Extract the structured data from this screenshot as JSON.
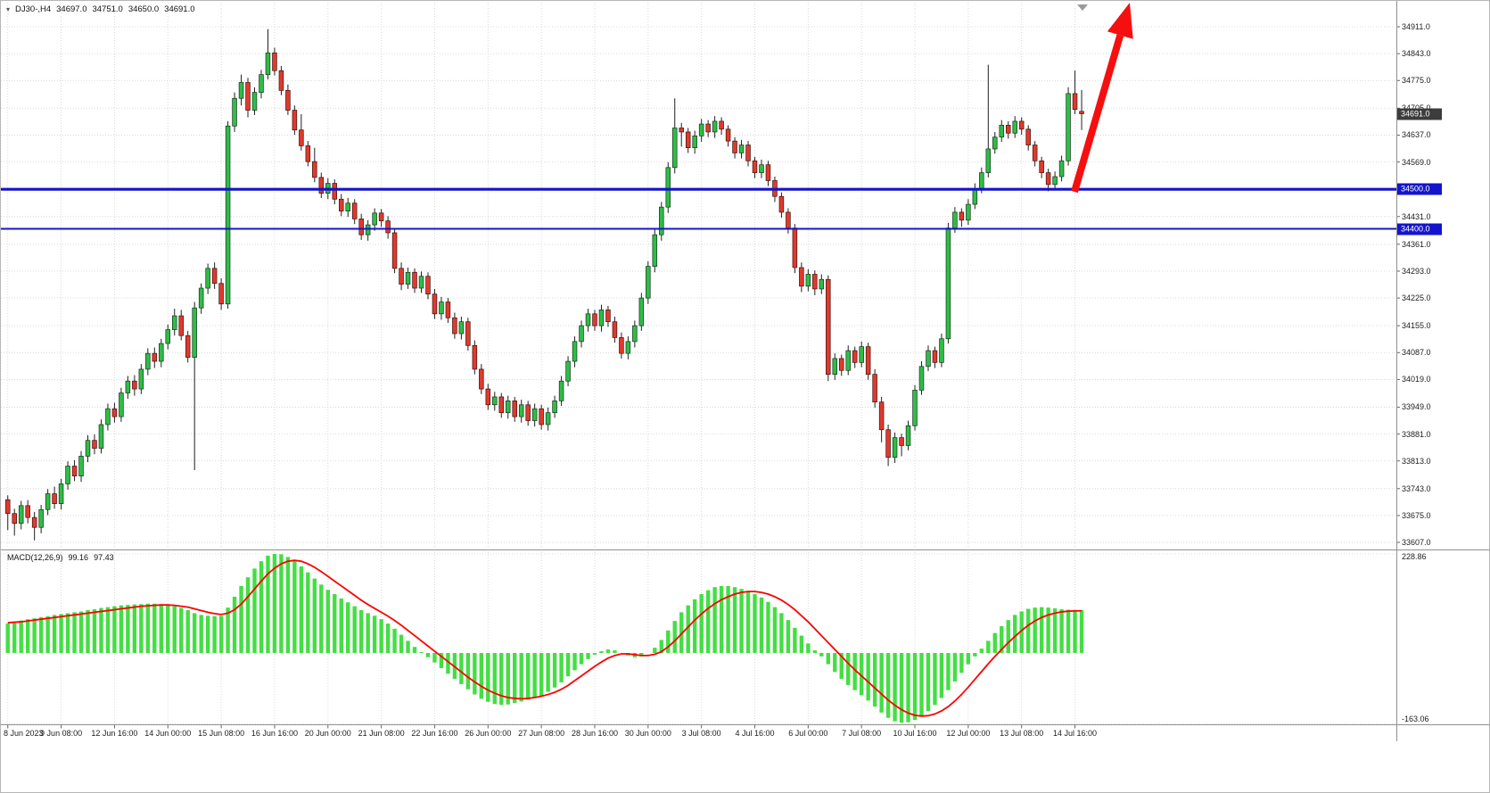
{
  "header": {
    "symbol": "DJ30-,H4",
    "open": "34697.0",
    "high": "34751.0",
    "low": "34650.0",
    "close": "34691.0"
  },
  "price_axis": {
    "ticks": [
      "34911.0",
      "34843.0",
      "34775.0",
      "34705.0",
      "34637.0",
      "34569.0",
      "34431.0",
      "34361.0",
      "34293.0",
      "34225.0",
      "34155.0",
      "34087.0",
      "34019.0",
      "33949.0",
      "33881.0",
      "33813.0",
      "33743.0",
      "33675.0",
      "33607.0"
    ],
    "current_price_label": "34691.0",
    "line_labels": [
      "34500.0",
      "34400.0"
    ]
  },
  "macd_panel": {
    "name": "MACD(12,26,9)",
    "main_value": "99.16",
    "signal_value": "97.43",
    "axis_ticks": [
      "228.86",
      "-163.06"
    ]
  },
  "time_axis": {
    "labels": [
      "8 Jun 2023",
      "9 Jun 08:00",
      "12 Jun 16:00",
      "14 Jun 00:00",
      "15 Jun 08:00",
      "16 Jun 16:00",
      "20 Jun 00:00",
      "21 Jun 08:00",
      "22 Jun 16:00",
      "26 Jun 00:00",
      "27 Jun 08:00",
      "28 Jun 16:00",
      "30 Jun 00:00",
      "3 Jul 08:00",
      "4 Jul 16:00",
      "6 Jul 00:00",
      "7 Jul 08:00",
      "10 Jul 16:00",
      "12 Jul 00:00",
      "13 Jul 08:00",
      "14 Jul 16:00"
    ]
  },
  "colors": {
    "bull": "#2fbd47",
    "bear": "#e2392c",
    "macd_histogram": "#43de43",
    "macd_signal": "#fe0000",
    "horizontal_line": "#1414cc",
    "arrow": "#f50f0f",
    "grid": "#d9d9d9",
    "current_price_badge": "#3c3c3c"
  },
  "chart_data": {
    "type": "candlestick",
    "symbol": "DJ30-",
    "timeframe": "H4",
    "current_bar": {
      "open": 34697.0,
      "high": 34751.0,
      "low": 34650.0,
      "close": 34691.0
    },
    "ylim": [
      33607,
      34911
    ],
    "grid": true,
    "bars_per_label": 8,
    "x_labels": [
      "8 Jun 2023",
      "9 Jun 08:00",
      "12 Jun 16:00",
      "14 Jun 00:00",
      "15 Jun 08:00",
      "16 Jun 16:00",
      "20 Jun 00:00",
      "21 Jun 08:00",
      "22 Jun 16:00",
      "26 Jun 00:00",
      "27 Jun 08:00",
      "28 Jun 16:00",
      "30 Jun 00:00",
      "3 Jul 08:00",
      "4 Jul 16:00",
      "6 Jul 00:00",
      "7 Jul 08:00",
      "10 Jul 16:00",
      "12 Jul 00:00",
      "13 Jul 08:00",
      "14 Jul 16:00"
    ],
    "hlines": [
      34500.0,
      34400.0
    ],
    "annotations": [
      {
        "type": "arrow-up-right",
        "color": "#f50f0f",
        "anchor_price": 34500.0
      }
    ],
    "candles": [
      [
        33715,
        33726,
        33638,
        33680
      ],
      [
        33680,
        33692,
        33624,
        33655
      ],
      [
        33655,
        33712,
        33640,
        33700
      ],
      [
        33700,
        33714,
        33655,
        33670
      ],
      [
        33670,
        33684,
        33612,
        33645
      ],
      [
        33645,
        33702,
        33630,
        33690
      ],
      [
        33690,
        33742,
        33676,
        33730
      ],
      [
        33730,
        33748,
        33692,
        33705
      ],
      [
        33705,
        33768,
        33690,
        33755
      ],
      [
        33755,
        33812,
        33740,
        33800
      ],
      [
        33800,
        33815,
        33762,
        33775
      ],
      [
        33775,
        33838,
        33760,
        33825
      ],
      [
        33825,
        33878,
        33810,
        33865
      ],
      [
        33865,
        33880,
        33830,
        33845
      ],
      [
        33845,
        33918,
        33832,
        33905
      ],
      [
        33905,
        33958,
        33890,
        33945
      ],
      [
        33945,
        33960,
        33910,
        33925
      ],
      [
        33925,
        33998,
        33912,
        33985
      ],
      [
        33985,
        34028,
        33970,
        34015
      ],
      [
        34015,
        34030,
        33978,
        33995
      ],
      [
        33995,
        34058,
        33982,
        34045
      ],
      [
        34045,
        34098,
        34030,
        34085
      ],
      [
        34085,
        34100,
        34048,
        34065
      ],
      [
        34065,
        34122,
        34050,
        34110
      ],
      [
        34110,
        34158,
        34095,
        34145
      ],
      [
        34145,
        34198,
        34130,
        34180
      ],
      [
        34180,
        34195,
        34118,
        34130
      ],
      [
        34130,
        34142,
        34062,
        34075
      ],
      [
        34075,
        34215,
        33790,
        34200
      ],
      [
        34200,
        34262,
        34185,
        34250
      ],
      [
        34250,
        34312,
        34235,
        34300
      ],
      [
        34300,
        34315,
        34248,
        34262
      ],
      [
        34262,
        34275,
        34195,
        34210
      ],
      [
        34210,
        34672,
        34198,
        34660
      ],
      [
        34660,
        34745,
        34645,
        34730
      ],
      [
        34730,
        34790,
        34712,
        34770
      ],
      [
        34770,
        34782,
        34682,
        34700
      ],
      [
        34700,
        34758,
        34688,
        34745
      ],
      [
        34745,
        34802,
        34730,
        34790
      ],
      [
        34790,
        34905,
        34778,
        34845
      ],
      [
        34845,
        34858,
        34788,
        34800
      ],
      [
        34800,
        34812,
        34738,
        34750
      ],
      [
        34750,
        34765,
        34688,
        34700
      ],
      [
        34700,
        34712,
        34638,
        34650
      ],
      [
        34650,
        34690,
        34598,
        34610
      ],
      [
        34610,
        34622,
        34558,
        34570
      ],
      [
        34570,
        34605,
        34518,
        34530
      ],
      [
        34530,
        34542,
        34478,
        34490
      ],
      [
        34490,
        34528,
        34475,
        34515
      ],
      [
        34515,
        34525,
        34462,
        34475
      ],
      [
        34475,
        34488,
        34432,
        34445
      ],
      [
        34445,
        34478,
        34430,
        34465
      ],
      [
        34465,
        34475,
        34412,
        34425
      ],
      [
        34425,
        34438,
        34372,
        34385
      ],
      [
        34385,
        34422,
        34370,
        34410
      ],
      [
        34410,
        34452,
        34395,
        34440
      ],
      [
        34440,
        34450,
        34405,
        34420
      ],
      [
        34420,
        34432,
        34375,
        34390
      ],
      [
        34390,
        34400,
        34288,
        34300
      ],
      [
        34300,
        34315,
        34245,
        34260
      ],
      [
        34260,
        34302,
        34248,
        34290
      ],
      [
        34290,
        34300,
        34238,
        34250
      ],
      [
        34250,
        34292,
        34238,
        34280
      ],
      [
        34280,
        34290,
        34222,
        34235
      ],
      [
        34235,
        34248,
        34172,
        34185
      ],
      [
        34185,
        34228,
        34170,
        34215
      ],
      [
        34215,
        34225,
        34162,
        34175
      ],
      [
        34175,
        34188,
        34122,
        34135
      ],
      [
        34135,
        34178,
        34120,
        34165
      ],
      [
        34165,
        34175,
        34092,
        34105
      ],
      [
        34105,
        34118,
        34032,
        34045
      ],
      [
        34045,
        34058,
        33982,
        33995
      ],
      [
        33995,
        34008,
        33942,
        33955
      ],
      [
        33955,
        33988,
        33940,
        33975
      ],
      [
        33975,
        33985,
        33922,
        33935
      ],
      [
        33935,
        33978,
        33920,
        33965
      ],
      [
        33965,
        33975,
        33912,
        33925
      ],
      [
        33925,
        33968,
        33910,
        33955
      ],
      [
        33955,
        33965,
        33902,
        33915
      ],
      [
        33915,
        33958,
        33900,
        33945
      ],
      [
        33945,
        33955,
        33892,
        33905
      ],
      [
        33905,
        33948,
        33890,
        33935
      ],
      [
        33935,
        33978,
        33922,
        33965
      ],
      [
        33965,
        34028,
        33952,
        34015
      ],
      [
        34015,
        34078,
        34002,
        34065
      ],
      [
        34065,
        34128,
        34050,
        34115
      ],
      [
        34115,
        34168,
        34100,
        34155
      ],
      [
        34155,
        34198,
        34140,
        34185
      ],
      [
        34185,
        34195,
        34142,
        34155
      ],
      [
        34155,
        34208,
        34140,
        34195
      ],
      [
        34195,
        34205,
        34152,
        34165
      ],
      [
        34165,
        34178,
        34112,
        34125
      ],
      [
        34125,
        34138,
        34072,
        34085
      ],
      [
        34085,
        34128,
        34070,
        34115
      ],
      [
        34115,
        34168,
        34100,
        34155
      ],
      [
        34155,
        34238,
        34142,
        34225
      ],
      [
        34225,
        34318,
        34210,
        34305
      ],
      [
        34305,
        34398,
        34290,
        34385
      ],
      [
        34385,
        34468,
        34370,
        34455
      ],
      [
        34455,
        34568,
        34440,
        34555
      ],
      [
        34555,
        34730,
        34540,
        34655
      ],
      [
        34655,
        34668,
        34608,
        34645
      ],
      [
        34645,
        34655,
        34592,
        34605
      ],
      [
        34605,
        34648,
        34590,
        34635
      ],
      [
        34635,
        34678,
        34620,
        34665
      ],
      [
        34665,
        34675,
        34632,
        34645
      ],
      [
        34645,
        34685,
        34630,
        34672
      ],
      [
        34672,
        34682,
        34638,
        34652
      ],
      [
        34652,
        34662,
        34608,
        34622
      ],
      [
        34622,
        34632,
        34578,
        34592
      ],
      [
        34592,
        34625,
        34578,
        34612
      ],
      [
        34612,
        34622,
        34558,
        34572
      ],
      [
        34572,
        34582,
        34528,
        34542
      ],
      [
        34542,
        34575,
        34528,
        34562
      ],
      [
        34562,
        34572,
        34508,
        34522
      ],
      [
        34522,
        34532,
        34468,
        34482
      ],
      [
        34482,
        34492,
        34428,
        34442
      ],
      [
        34442,
        34452,
        34388,
        34402
      ],
      [
        34402,
        34412,
        34288,
        34302
      ],
      [
        34302,
        34315,
        34240,
        34255
      ],
      [
        34255,
        34298,
        34242,
        34285
      ],
      [
        34285,
        34295,
        34232,
        34248
      ],
      [
        34248,
        34285,
        34235,
        34272
      ],
      [
        34272,
        34282,
        34015,
        34032
      ],
      [
        34032,
        34085,
        34018,
        34072
      ],
      [
        34072,
        34082,
        34028,
        34042
      ],
      [
        34042,
        34105,
        34030,
        34092
      ],
      [
        34092,
        34102,
        34048,
        34062
      ],
      [
        34062,
        34115,
        34050,
        34102
      ],
      [
        34102,
        34112,
        34018,
        34032
      ],
      [
        34032,
        34045,
        33948,
        33962
      ],
      [
        33962,
        33975,
        33860,
        33892
      ],
      [
        33892,
        33905,
        33800,
        33822
      ],
      [
        33822,
        33885,
        33808,
        33872
      ],
      [
        33872,
        33882,
        33825,
        33852
      ],
      [
        33852,
        33915,
        33840,
        33902
      ],
      [
        33902,
        34005,
        33890,
        33992
      ],
      [
        33992,
        34065,
        33980,
        34052
      ],
      [
        34052,
        34105,
        34040,
        34092
      ],
      [
        34092,
        34102,
        34048,
        34062
      ],
      [
        34062,
        34135,
        34050,
        34122
      ],
      [
        34122,
        34415,
        34110,
        34402
      ],
      [
        34402,
        34455,
        34390,
        34442
      ],
      [
        34442,
        34452,
        34405,
        34422
      ],
      [
        34422,
        34475,
        34410,
        34462
      ],
      [
        34462,
        34515,
        34450,
        34502
      ],
      [
        34502,
        34555,
        34490,
        34542
      ],
      [
        34542,
        34815,
        34530,
        34602
      ],
      [
        34602,
        34645,
        34590,
        34632
      ],
      [
        34632,
        34675,
        34620,
        34662
      ],
      [
        34662,
        34672,
        34628,
        34642
      ],
      [
        34642,
        34685,
        34630,
        34672
      ],
      [
        34672,
        34682,
        34638,
        34652
      ],
      [
        34652,
        34662,
        34598,
        34612
      ],
      [
        34612,
        34622,
        34558,
        34572
      ],
      [
        34572,
        34582,
        34528,
        34542
      ],
      [
        34542,
        34552,
        34495,
        34512
      ],
      [
        34512,
        34545,
        34500,
        34532
      ],
      [
        34532,
        34585,
        34520,
        34572
      ],
      [
        34572,
        34758,
        34560,
        34742
      ],
      [
        34742,
        34800,
        34690,
        34702
      ],
      [
        34697,
        34751,
        34650,
        34691
      ]
    ],
    "macd": {
      "params": "12,26,9",
      "main_current": 99.16,
      "signal_current": 97.43,
      "axis_range": [
        228.86,
        -163.06
      ],
      "histogram": [
        68,
        72,
        75,
        78,
        80,
        83,
        85,
        88,
        90,
        92,
        94,
        96,
        99,
        101,
        104,
        106,
        108,
        110,
        111,
        112,
        113,
        114,
        114,
        113,
        111,
        108,
        104,
        99,
        92,
        88,
        86,
        85,
        86,
        105,
        130,
        155,
        175,
        195,
        212,
        225,
        230,
        228,
        222,
        212,
        200,
        186,
        172,
        158,
        146,
        136,
        126,
        117,
        108,
        99,
        92,
        86,
        78,
        68,
        56,
        42,
        28,
        14,
        2,
        -10,
        -22,
        -35,
        -48,
        -60,
        -72,
        -84,
        -96,
        -106,
        -113,
        -118,
        -120,
        -119,
        -116,
        -112,
        -108,
        -104,
        -100,
        -90,
        -80,
        -68,
        -54,
        -40,
        -26,
        -14,
        -4,
        4,
        8,
        6,
        0,
        -6,
        -10,
        -8,
        0,
        12,
        30,
        52,
        74,
        94,
        110,
        124,
        136,
        145,
        152,
        155,
        155,
        152,
        148,
        142,
        136,
        128,
        118,
        106,
        92,
        76,
        58,
        40,
        22,
        6,
        -8,
        -26,
        -44,
        -60,
        -74,
        -86,
        -98,
        -110,
        -124,
        -138,
        -150,
        -158,
        -161,
        -160,
        -155,
        -146,
        -134,
        -120,
        -104,
        -86,
        -66,
        -46,
        -26,
        -8,
        10,
        28,
        46,
        62,
        76,
        88,
        96,
        102,
        105,
        106,
        105,
        103,
        101,
        100,
        99.5,
        99.16
      ],
      "signal": [
        70,
        71,
        72,
        74,
        76,
        78,
        80,
        82,
        84,
        86,
        88,
        90,
        92,
        94,
        96,
        98,
        100,
        102,
        104,
        106,
        108,
        109,
        110,
        111,
        111,
        110,
        108,
        106,
        102,
        98,
        94,
        91,
        89,
        92,
        100,
        113,
        130,
        148,
        166,
        183,
        196,
        206,
        212,
        214,
        212,
        206,
        198,
        188,
        177,
        166,
        155,
        144,
        133,
        122,
        112,
        103,
        94,
        85,
        75,
        64,
        52,
        40,
        28,
        16,
        4,
        -8,
        -20,
        -32,
        -44,
        -56,
        -67,
        -77,
        -86,
        -93,
        -99,
        -103,
        -105,
        -106,
        -105,
        -103,
        -100,
        -96,
        -91,
        -84,
        -75,
        -64,
        -53,
        -42,
        -31,
        -21,
        -12,
        -6,
        -2,
        -2,
        -4,
        -6,
        -6,
        -3,
        3,
        14,
        28,
        44,
        60,
        76,
        90,
        103,
        114,
        123,
        130,
        136,
        140,
        142,
        142,
        140,
        136,
        130,
        122,
        112,
        100,
        86,
        72,
        56,
        40,
        24,
        8,
        -8,
        -24,
        -39,
        -53,
        -67,
        -81,
        -95,
        -109,
        -121,
        -131,
        -139,
        -144,
        -146,
        -145,
        -141,
        -134,
        -124,
        -111,
        -96,
        -79,
        -61,
        -43,
        -25,
        -8,
        8,
        24,
        38,
        52,
        64,
        74,
        82,
        88,
        92,
        95,
        96.5,
        97.2,
        97.43
      ]
    }
  }
}
